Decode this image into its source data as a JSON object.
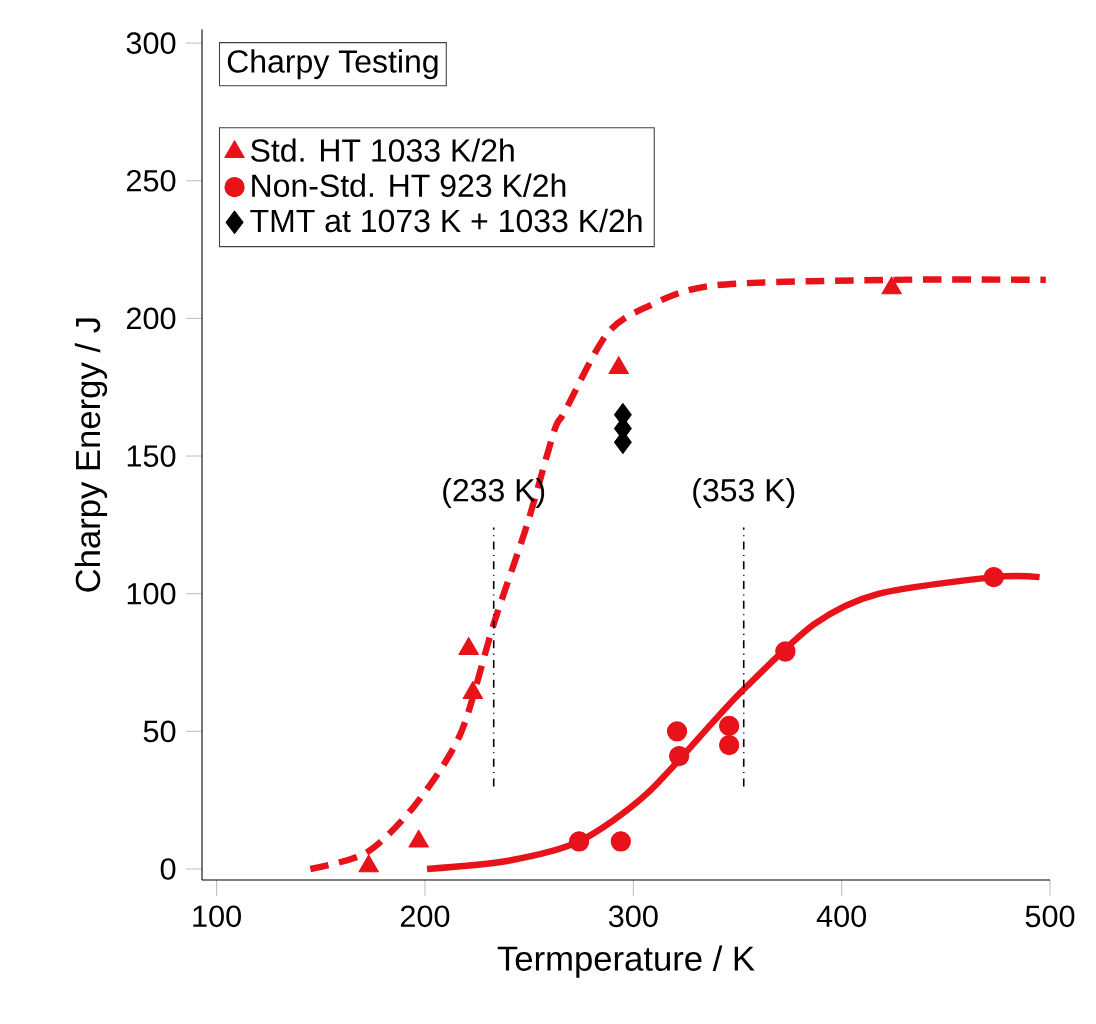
{
  "chart_data": {
    "type": "scatter",
    "title": "Charpy Testing",
    "xlabel": "Termperature / K",
    "ylabel": "Charpy Energy / J",
    "xlim": [
      93,
      500
    ],
    "xticks": [
      100,
      200,
      300,
      400,
      500
    ],
    "ylim": [
      -4,
      305
    ],
    "yticks": [
      0,
      50,
      100,
      150,
      200,
      250,
      300
    ],
    "grid": false,
    "legend": "top left",
    "series": [
      {
        "name": "Std. HT 1033 K/2h",
        "marker": "triangle",
        "color": "#e8121a",
        "x": [
          173,
          197,
          223,
          221,
          293,
          424
        ],
        "values": [
          1,
          10,
          64,
          80,
          182,
          211
        ]
      },
      {
        "name": "Non-Std. HT 923 K/2h",
        "marker": "circle",
        "color": "#e8121a",
        "x": [
          274,
          294,
          321,
          322,
          346,
          346,
          373,
          473
        ],
        "values": [
          10,
          10,
          50,
          41,
          52,
          45,
          79,
          106
        ]
      },
      {
        "name": "TMT at 1073 K + 1033 K/2h",
        "marker": "diamond",
        "color": "#000000",
        "x": [
          295,
          295,
          295
        ],
        "values": [
          165,
          160,
          155
        ]
      },
      {
        "type": "line",
        "line_style": "dashed",
        "marker": "none",
        "color": "#e8121a",
        "x": [
          145,
          172,
          195,
          217,
          233,
          249,
          262,
          267,
          287,
          306,
          339,
          424,
          498
        ],
        "values": [
          0,
          6,
          23,
          49,
          89,
          125,
          159,
          166,
          194,
          204,
          212,
          214,
          214
        ]
      },
      {
        "type": "line",
        "line_style": "solid",
        "marker": "none",
        "color": "#e8121a",
        "x": [
          201,
          240,
          274,
          306,
          339,
          354,
          387,
          418,
          473,
          495
        ],
        "values": [
          0,
          3,
          10,
          27,
          54,
          66,
          89,
          100,
          106,
          106
        ]
      }
    ],
    "ref_lines": [
      {
        "axis": "x",
        "value": 233,
        "label": "(233 K)",
        "line_style": "dashdot",
        "color": "#000000"
      },
      {
        "axis": "x",
        "value": 353,
        "label": "(353 K)",
        "line_style": "dashdot",
        "color": "#000000"
      }
    ]
  }
}
